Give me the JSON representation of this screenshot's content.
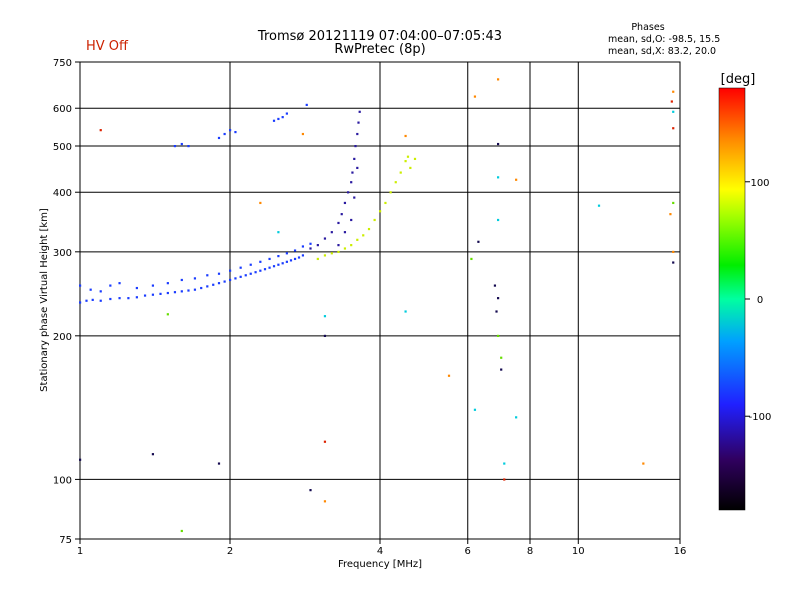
{
  "status_text": "HV Off",
  "chart_data": {
    "type": "scatter",
    "title": "Tromsø 20121119 07:04:00–07:05:43",
    "subtitle": "RwPretec (8p)",
    "xlabel": "Frequency [MHz]",
    "ylabel": "Stationary phase Virtual Height [km]",
    "x_scale": "log",
    "y_scale": "log",
    "xlim": [
      1,
      16
    ],
    "ylim": [
      75,
      750
    ],
    "x_ticks": [
      {
        "value": 1,
        "label": "1"
      },
      {
        "value": 2,
        "label": "2"
      },
      {
        "value": 4,
        "label": "4"
      },
      {
        "value": 6,
        "label": "6"
      },
      {
        "value": 8,
        "label": "8"
      },
      {
        "value": 10,
        "label": "10"
      },
      {
        "value": 16,
        "label": "16"
      }
    ],
    "y_ticks": [
      {
        "value": 75,
        "label": "75"
      },
      {
        "value": 100,
        "label": "100"
      },
      {
        "value": 200,
        "label": "200"
      },
      {
        "value": 300,
        "label": "300"
      },
      {
        "value": 400,
        "label": "400"
      },
      {
        "value": 500,
        "label": "500"
      },
      {
        "value": 600,
        "label": "600"
      },
      {
        "value": 750,
        "label": "750"
      }
    ],
    "grid_x": [
      2,
      4,
      6,
      8,
      10
    ],
    "grid_y": [
      100,
      200,
      300,
      400,
      500,
      600
    ],
    "phase_info": {
      "heading": "Phases",
      "line_o": "mean, sd,O: -98.5, 15.5",
      "line_x": "mean, sd,X:  83.2, 20.0"
    },
    "colorbar": {
      "label": "[deg]",
      "range": [
        -180,
        180
      ],
      "ticks": [
        {
          "value": 100,
          "label": "100"
        },
        {
          "value": 0,
          "label": "0"
        },
        {
          "value": -100,
          "label": "-100"
        }
      ]
    },
    "colors": {
      "blue": "#1a3cff",
      "darkblue": "#2a1aa0",
      "yellow": "#ccee00",
      "orange": "#ff8800",
      "red": "#dd2200",
      "cyan": "#00ccdd",
      "green": "#66dd00",
      "navy": "#140a50"
    },
    "series": [
      {
        "name": "O-trace lower",
        "color": "blue",
        "points": [
          [
            1,
            235
          ],
          [
            1.03,
            237
          ],
          [
            1.06,
            238
          ],
          [
            1.1,
            237
          ],
          [
            1.15,
            239
          ],
          [
            1.2,
            240
          ],
          [
            1.25,
            240
          ],
          [
            1.3,
            241
          ],
          [
            1.35,
            243
          ],
          [
            1.4,
            244
          ],
          [
            1.45,
            245
          ],
          [
            1.5,
            246
          ],
          [
            1.55,
            247
          ],
          [
            1.6,
            248
          ],
          [
            1.65,
            249
          ],
          [
            1.7,
            250
          ],
          [
            1.75,
            252
          ],
          [
            1.8,
            254
          ],
          [
            1.85,
            256
          ],
          [
            1.9,
            258
          ],
          [
            1.95,
            260
          ],
          [
            2.0,
            262
          ],
          [
            2.05,
            264
          ],
          [
            2.1,
            266
          ],
          [
            2.15,
            268
          ],
          [
            2.2,
            270
          ],
          [
            2.25,
            272
          ],
          [
            2.3,
            274
          ],
          [
            2.35,
            276
          ],
          [
            2.4,
            278
          ],
          [
            2.45,
            280
          ],
          [
            2.5,
            282
          ],
          [
            2.55,
            284
          ],
          [
            2.6,
            286
          ],
          [
            2.65,
            288
          ],
          [
            2.7,
            290
          ],
          [
            2.75,
            292
          ],
          [
            2.8,
            295
          ]
        ]
      },
      {
        "name": "O-trace upper",
        "color": "blue",
        "points": [
          [
            1.0,
            255
          ],
          [
            1.05,
            250
          ],
          [
            1.1,
            248
          ],
          [
            1.15,
            255
          ],
          [
            1.2,
            258
          ],
          [
            1.3,
            252
          ],
          [
            1.4,
            255
          ],
          [
            1.5,
            258
          ],
          [
            1.6,
            262
          ],
          [
            1.7,
            264
          ],
          [
            1.8,
            268
          ],
          [
            1.9,
            270
          ],
          [
            2.0,
            274
          ],
          [
            2.1,
            278
          ],
          [
            2.2,
            282
          ],
          [
            2.3,
            286
          ],
          [
            2.4,
            290
          ],
          [
            2.5,
            294
          ],
          [
            2.6,
            298
          ],
          [
            2.7,
            302
          ],
          [
            2.8,
            308
          ],
          [
            2.9,
            312
          ]
        ]
      },
      {
        "name": "O-trace cusp",
        "color": "darkblue",
        "points": [
          [
            2.9,
            305
          ],
          [
            3.0,
            310
          ],
          [
            3.1,
            320
          ],
          [
            3.2,
            330
          ],
          [
            3.3,
            345
          ],
          [
            3.35,
            360
          ],
          [
            3.4,
            380
          ],
          [
            3.45,
            400
          ],
          [
            3.5,
            420
          ],
          [
            3.52,
            440
          ],
          [
            3.55,
            470
          ],
          [
            3.57,
            500
          ],
          [
            3.6,
            530
          ],
          [
            3.62,
            560
          ],
          [
            3.64,
            590
          ],
          [
            3.3,
            310
          ],
          [
            3.4,
            330
          ],
          [
            3.5,
            350
          ],
          [
            3.55,
            390
          ],
          [
            3.6,
            450
          ]
        ]
      },
      {
        "name": "O-trace high",
        "color": "blue",
        "points": [
          [
            1.55,
            500
          ],
          [
            1.6,
            505
          ],
          [
            1.65,
            500
          ],
          [
            1.9,
            520
          ],
          [
            1.95,
            530
          ],
          [
            2.0,
            540
          ],
          [
            2.05,
            535
          ],
          [
            2.45,
            565
          ],
          [
            2.5,
            570
          ],
          [
            2.55,
            575
          ],
          [
            2.6,
            585
          ],
          [
            2.85,
            610
          ]
        ]
      },
      {
        "name": "X-trace",
        "color": "yellow",
        "points": [
          [
            3.0,
            290
          ],
          [
            3.1,
            295
          ],
          [
            3.2,
            298
          ],
          [
            3.3,
            300
          ],
          [
            3.4,
            305
          ],
          [
            3.5,
            310
          ],
          [
            3.6,
            318
          ],
          [
            3.7,
            325
          ],
          [
            3.8,
            335
          ],
          [
            3.9,
            350
          ],
          [
            4.0,
            365
          ],
          [
            4.1,
            380
          ],
          [
            4.2,
            400
          ],
          [
            4.3,
            420
          ],
          [
            4.4,
            440
          ],
          [
            4.5,
            465
          ],
          [
            4.55,
            475
          ],
          [
            4.6,
            450
          ],
          [
            4.7,
            470
          ]
        ]
      },
      {
        "name": "scattered",
        "color": "orange",
        "points": [
          [
            2.3,
            380
          ],
          [
            2.8,
            530
          ],
          [
            4.5,
            525
          ],
          [
            3.1,
            90
          ],
          [
            6.2,
            635
          ],
          [
            6.9,
            690
          ],
          [
            7.5,
            425
          ],
          [
            15.5,
            650
          ],
          [
            15.3,
            360
          ],
          [
            15.5,
            300
          ],
          [
            5.5,
            165
          ],
          [
            13.5,
            108
          ]
        ]
      },
      {
        "name": "scattered cyan",
        "color": "cyan",
        "points": [
          [
            2.5,
            330
          ],
          [
            3.1,
            220
          ],
          [
            4.5,
            225
          ],
          [
            6.9,
            430
          ],
          [
            6.9,
            350
          ],
          [
            7.5,
            135
          ],
          [
            6.2,
            140
          ],
          [
            7.1,
            108
          ],
          [
            15.5,
            590
          ],
          [
            11.0,
            375
          ]
        ]
      },
      {
        "name": "scattered dark",
        "color": "navy",
        "points": [
          [
            3.1,
            200
          ],
          [
            2.9,
            95
          ],
          [
            6.8,
            255
          ],
          [
            6.9,
            240
          ],
          [
            6.85,
            225
          ],
          [
            7.0,
            170
          ],
          [
            6.9,
            505
          ],
          [
            6.3,
            315
          ],
          [
            15.5,
            285
          ],
          [
            1.0,
            110
          ],
          [
            1.9,
            108
          ],
          [
            1.4,
            113
          ]
        ]
      },
      {
        "name": "scattered red",
        "color": "red",
        "points": [
          [
            1.1,
            540
          ],
          [
            3.1,
            120
          ],
          [
            7.1,
            100
          ],
          [
            15.4,
            620
          ],
          [
            15.5,
            545
          ]
        ]
      },
      {
        "name": "scattered green-yellow",
        "color": "green",
        "points": [
          [
            1.5,
            222
          ],
          [
            1.6,
            78
          ],
          [
            6.1,
            290
          ],
          [
            6.9,
            200
          ],
          [
            7.0,
            180
          ],
          [
            15.5,
            380
          ]
        ]
      }
    ]
  }
}
